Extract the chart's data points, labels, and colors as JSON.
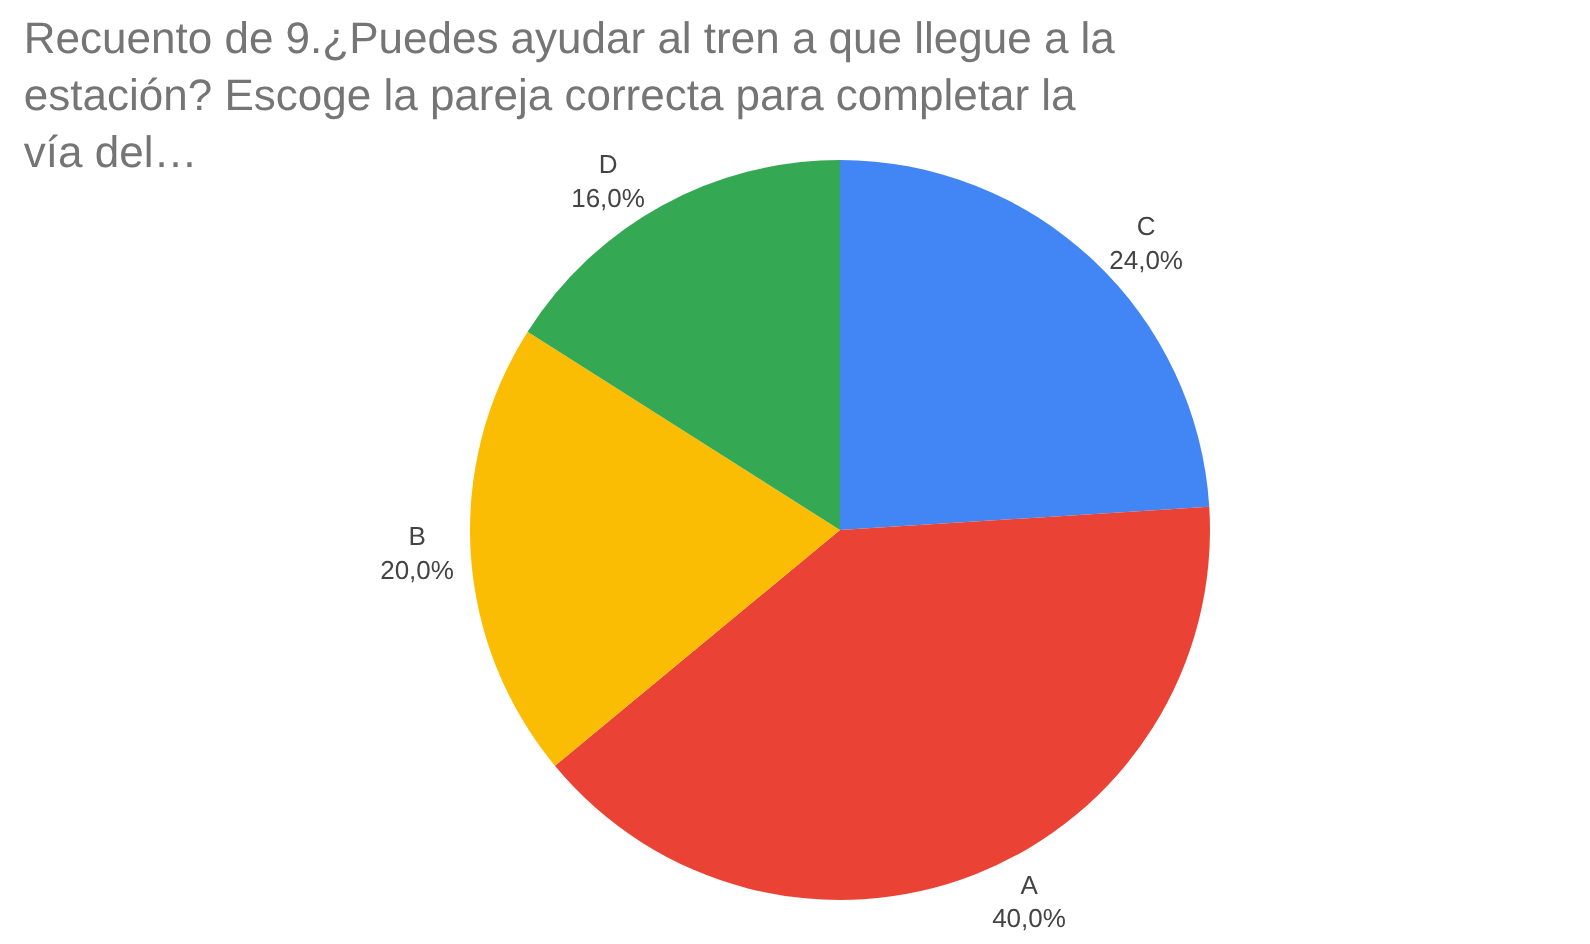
{
  "chart_data": {
    "type": "pie",
    "title": "Recuento de 9.¿Puedes ayudar al tren a que llegue a la estación? Escoge la pareja correcta para completar la vía del…",
    "categories": [
      "C",
      "A",
      "B",
      "D"
    ],
    "values": [
      24,
      40,
      20,
      16
    ],
    "colors": [
      "#4285f4",
      "#ea4335",
      "#fbbc04",
      "#34a853"
    ],
    "value_labels": [
      "24,0%",
      "40,0%",
      "20,0%",
      "16,0%"
    ],
    "legend": false
  }
}
